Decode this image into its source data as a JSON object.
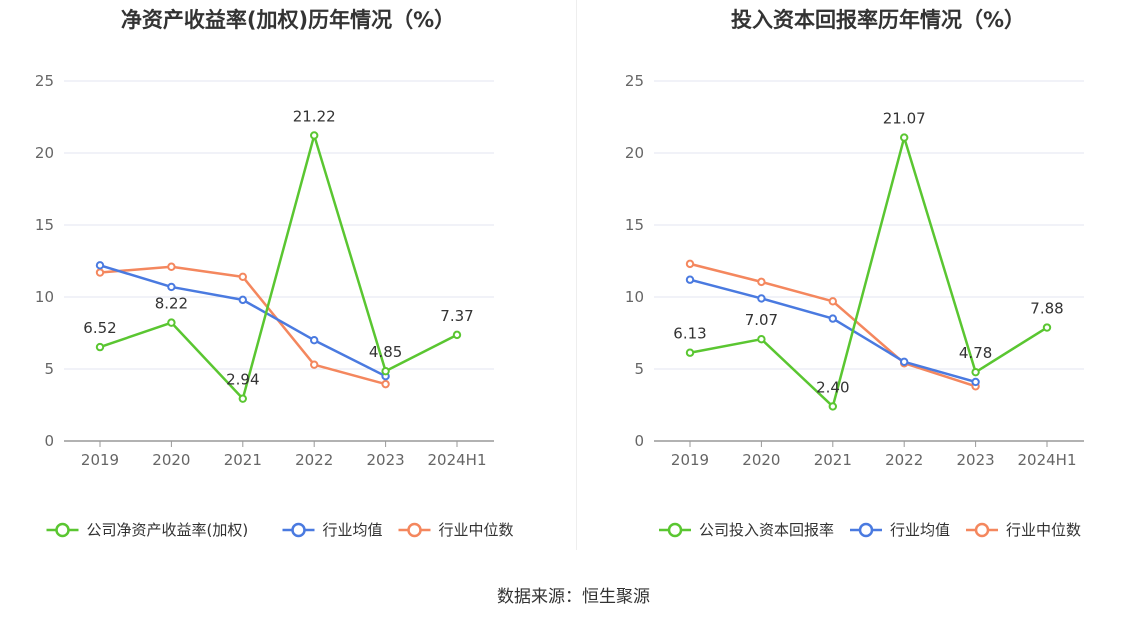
{
  "source_text": "数据来源：恒生聚源",
  "colors": {
    "company": "#5ac631",
    "avg": "#4a7ae0",
    "median": "#f4875e",
    "grid": "#e3e6f0",
    "axis": "#999999"
  },
  "chart_data": [
    {
      "type": "line",
      "title": "净资产收益率(加权)历年情况（%）",
      "categories": [
        "2019",
        "2020",
        "2021",
        "2022",
        "2023",
        "2024H1"
      ],
      "ylim": [
        0,
        25
      ],
      "yticks": [
        0,
        5,
        10,
        15,
        20,
        25
      ],
      "grid": true,
      "legend_position": "bottom",
      "series": [
        {
          "name": "公司净资产收益率(加权)",
          "key": "company",
          "values": [
            6.52,
            8.22,
            2.94,
            21.22,
            4.85,
            7.37
          ],
          "labels": [
            "6.52",
            "8.22",
            "2.94",
            "21.22",
            "4.85",
            "7.37"
          ]
        },
        {
          "name": "行业均值",
          "key": "avg",
          "values": [
            12.2,
            10.7,
            9.8,
            7.0,
            4.5,
            null
          ]
        },
        {
          "name": "行业中位数",
          "key": "median",
          "values": [
            11.7,
            12.1,
            11.4,
            5.3,
            3.95,
            null
          ]
        }
      ]
    },
    {
      "type": "line",
      "title": "投入资本回报率历年情况（%）",
      "categories": [
        "2019",
        "2020",
        "2021",
        "2022",
        "2023",
        "2024H1"
      ],
      "ylim": [
        0,
        25
      ],
      "yticks": [
        0,
        5,
        10,
        15,
        20,
        25
      ],
      "grid": true,
      "legend_position": "bottom",
      "series": [
        {
          "name": "公司投入资本回报率",
          "key": "company",
          "values": [
            6.13,
            7.07,
            2.4,
            21.07,
            4.78,
            7.88
          ],
          "labels": [
            "6.13",
            "7.07",
            "2.40",
            "21.07",
            "4.78",
            "7.88"
          ]
        },
        {
          "name": "行业均值",
          "key": "avg",
          "values": [
            11.2,
            9.9,
            8.5,
            5.5,
            4.1,
            null
          ]
        },
        {
          "name": "行业中位数",
          "key": "median",
          "values": [
            12.3,
            11.05,
            9.7,
            5.4,
            3.8,
            null
          ]
        }
      ]
    }
  ]
}
